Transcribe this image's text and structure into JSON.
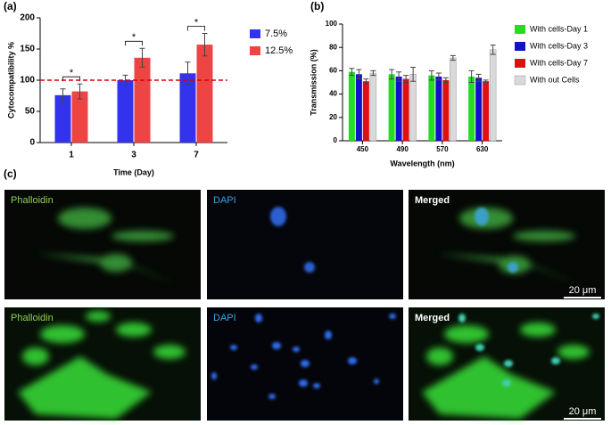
{
  "chart_data": [
    {
      "type": "bar",
      "panel_label": "(a)",
      "y_label": "Cytocompatibility %",
      "x_label": "Time (Day)",
      "categories": [
        "1",
        "3",
        "7"
      ],
      "series": [
        {
          "name": "7.5%",
          "color": "#3333ee",
          "values": [
            76,
            100,
            111
          ],
          "errors": [
            10,
            8,
            18
          ]
        },
        {
          "name": "12.5%",
          "color": "#ee4444",
          "values": [
            82,
            136,
            157
          ],
          "errors": [
            12,
            15,
            18
          ]
        }
      ],
      "ylim": [
        0,
        200
      ],
      "yticks": [
        0,
        50,
        100,
        150,
        200
      ],
      "reference_line": {
        "value": 100,
        "color": "#dd0000"
      },
      "significance": [
        "*",
        "*",
        "*"
      ]
    },
    {
      "type": "bar",
      "panel_label": "(b)",
      "y_label": "Transmission (%)",
      "x_label": "Wavelength (nm)",
      "categories": [
        "450",
        "490",
        "570",
        "630"
      ],
      "series": [
        {
          "name": "With cells-Day 1",
          "color": "#22dd22",
          "values": [
            59,
            57,
            56,
            55
          ],
          "errors": [
            3,
            4,
            4,
            5
          ]
        },
        {
          "name": "With cells-Day 3",
          "color": "#1111cc",
          "values": [
            57,
            55,
            55,
            54
          ],
          "errors": [
            4,
            4,
            3,
            3
          ]
        },
        {
          "name": "With cells-Day 7",
          "color": "#dd1111",
          "values": [
            51,
            53,
            52,
            51
          ],
          "errors": [
            2,
            3,
            2,
            1
          ]
        },
        {
          "name": "With out Cells",
          "color": "#d9d9d9",
          "values": [
            58,
            57,
            71,
            78
          ],
          "errors": [
            2,
            6,
            2,
            4
          ]
        }
      ],
      "ylim": [
        0,
        100
      ],
      "yticks": [
        0,
        20,
        40,
        60,
        80,
        100
      ]
    }
  ],
  "panel_c": {
    "label": "(c)",
    "rows": [
      [
        "Phalloidin",
        "DAPI",
        "Merged"
      ],
      [
        "Phalloidin",
        "DAPI",
        "Merged"
      ]
    ],
    "scale_bars": [
      "20 μm",
      "20 μm"
    ]
  }
}
